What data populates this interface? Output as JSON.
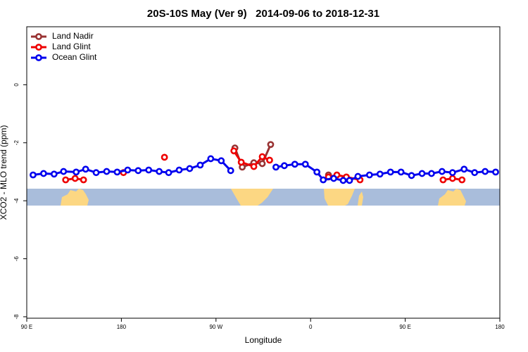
{
  "chart_data": {
    "type": "line",
    "title": "20S-10S May (Ver 9)   2014-09-06 to 2018-12-31",
    "x_label": "Longitude",
    "y_label": "XCO2 - MLO trend (ppm)",
    "xlim": [
      90,
      540
    ],
    "ylim": [
      -8.05,
      2
    ],
    "xticks": [
      {
        "value": 90,
        "label": "90 E"
      },
      180,
      {
        "value": 270,
        "label": "90 W"
      },
      {
        "value": 360,
        "label": "0"
      },
      {
        "value": 450,
        "label": "90 E"
      },
      {
        "value": 540,
        "label": "180"
      }
    ],
    "yticks": [
      0,
      -2,
      -4,
      -6,
      -8
    ],
    "legend": "top-left",
    "series": [
      {
        "name": "Land Nadir",
        "color": "#993333",
        "x": [
          288,
          295,
          306,
          314,
          322,
          null,
          377
        ],
        "values": [
          -2.18,
          -2.84,
          -2.69,
          -2.72,
          -2.06,
          null,
          -3.11
        ]
      },
      {
        "name": "Land Glint",
        "color": "#ee0000",
        "x": [
          127,
          136,
          144,
          null,
          182,
          null,
          221,
          null,
          287,
          294,
          306,
          314,
          321,
          null,
          377,
          385,
          394,
          407,
          null,
          486,
          495,
          504
        ],
        "values": [
          -3.28,
          -3.23,
          -3.28,
          null,
          -3.03,
          null,
          -2.5,
          null,
          -2.28,
          -2.67,
          -2.82,
          -2.48,
          -2.6,
          null,
          -3.18,
          -3.11,
          -3.18,
          -3.28,
          null,
          -3.28,
          -3.23,
          -3.28
        ]
      },
      {
        "name": "Ocean Glint",
        "color": "#0000ee",
        "x": [
          96,
          106,
          116,
          125,
          137,
          146,
          156,
          166,
          176,
          186,
          196,
          206,
          216,
          225,
          235,
          245,
          255,
          265,
          275,
          284,
          null,
          327,
          335,
          345,
          355,
          366,
          372,
          382,
          391,
          397,
          405,
          416,
          426,
          436,
          446,
          456,
          466,
          475,
          485,
          495,
          506,
          516,
          526,
          536
        ],
        "values": [
          -3.11,
          -3.06,
          -3.08,
          -2.99,
          -3.01,
          -2.91,
          -3.03,
          -2.99,
          -3.01,
          -2.94,
          -2.96,
          -2.94,
          -2.99,
          -3.03,
          -2.94,
          -2.89,
          -2.77,
          -2.55,
          -2.62,
          -2.96,
          null,
          -2.84,
          -2.79,
          -2.74,
          -2.74,
          -3.01,
          -3.28,
          -3.23,
          -3.3,
          -3.3,
          -3.16,
          -3.11,
          -3.08,
          -3.01,
          -3.01,
          -3.13,
          -3.06,
          -3.06,
          -2.99,
          -3.03,
          -2.91,
          -3.03,
          -2.99,
          -3.01
        ]
      }
    ]
  }
}
